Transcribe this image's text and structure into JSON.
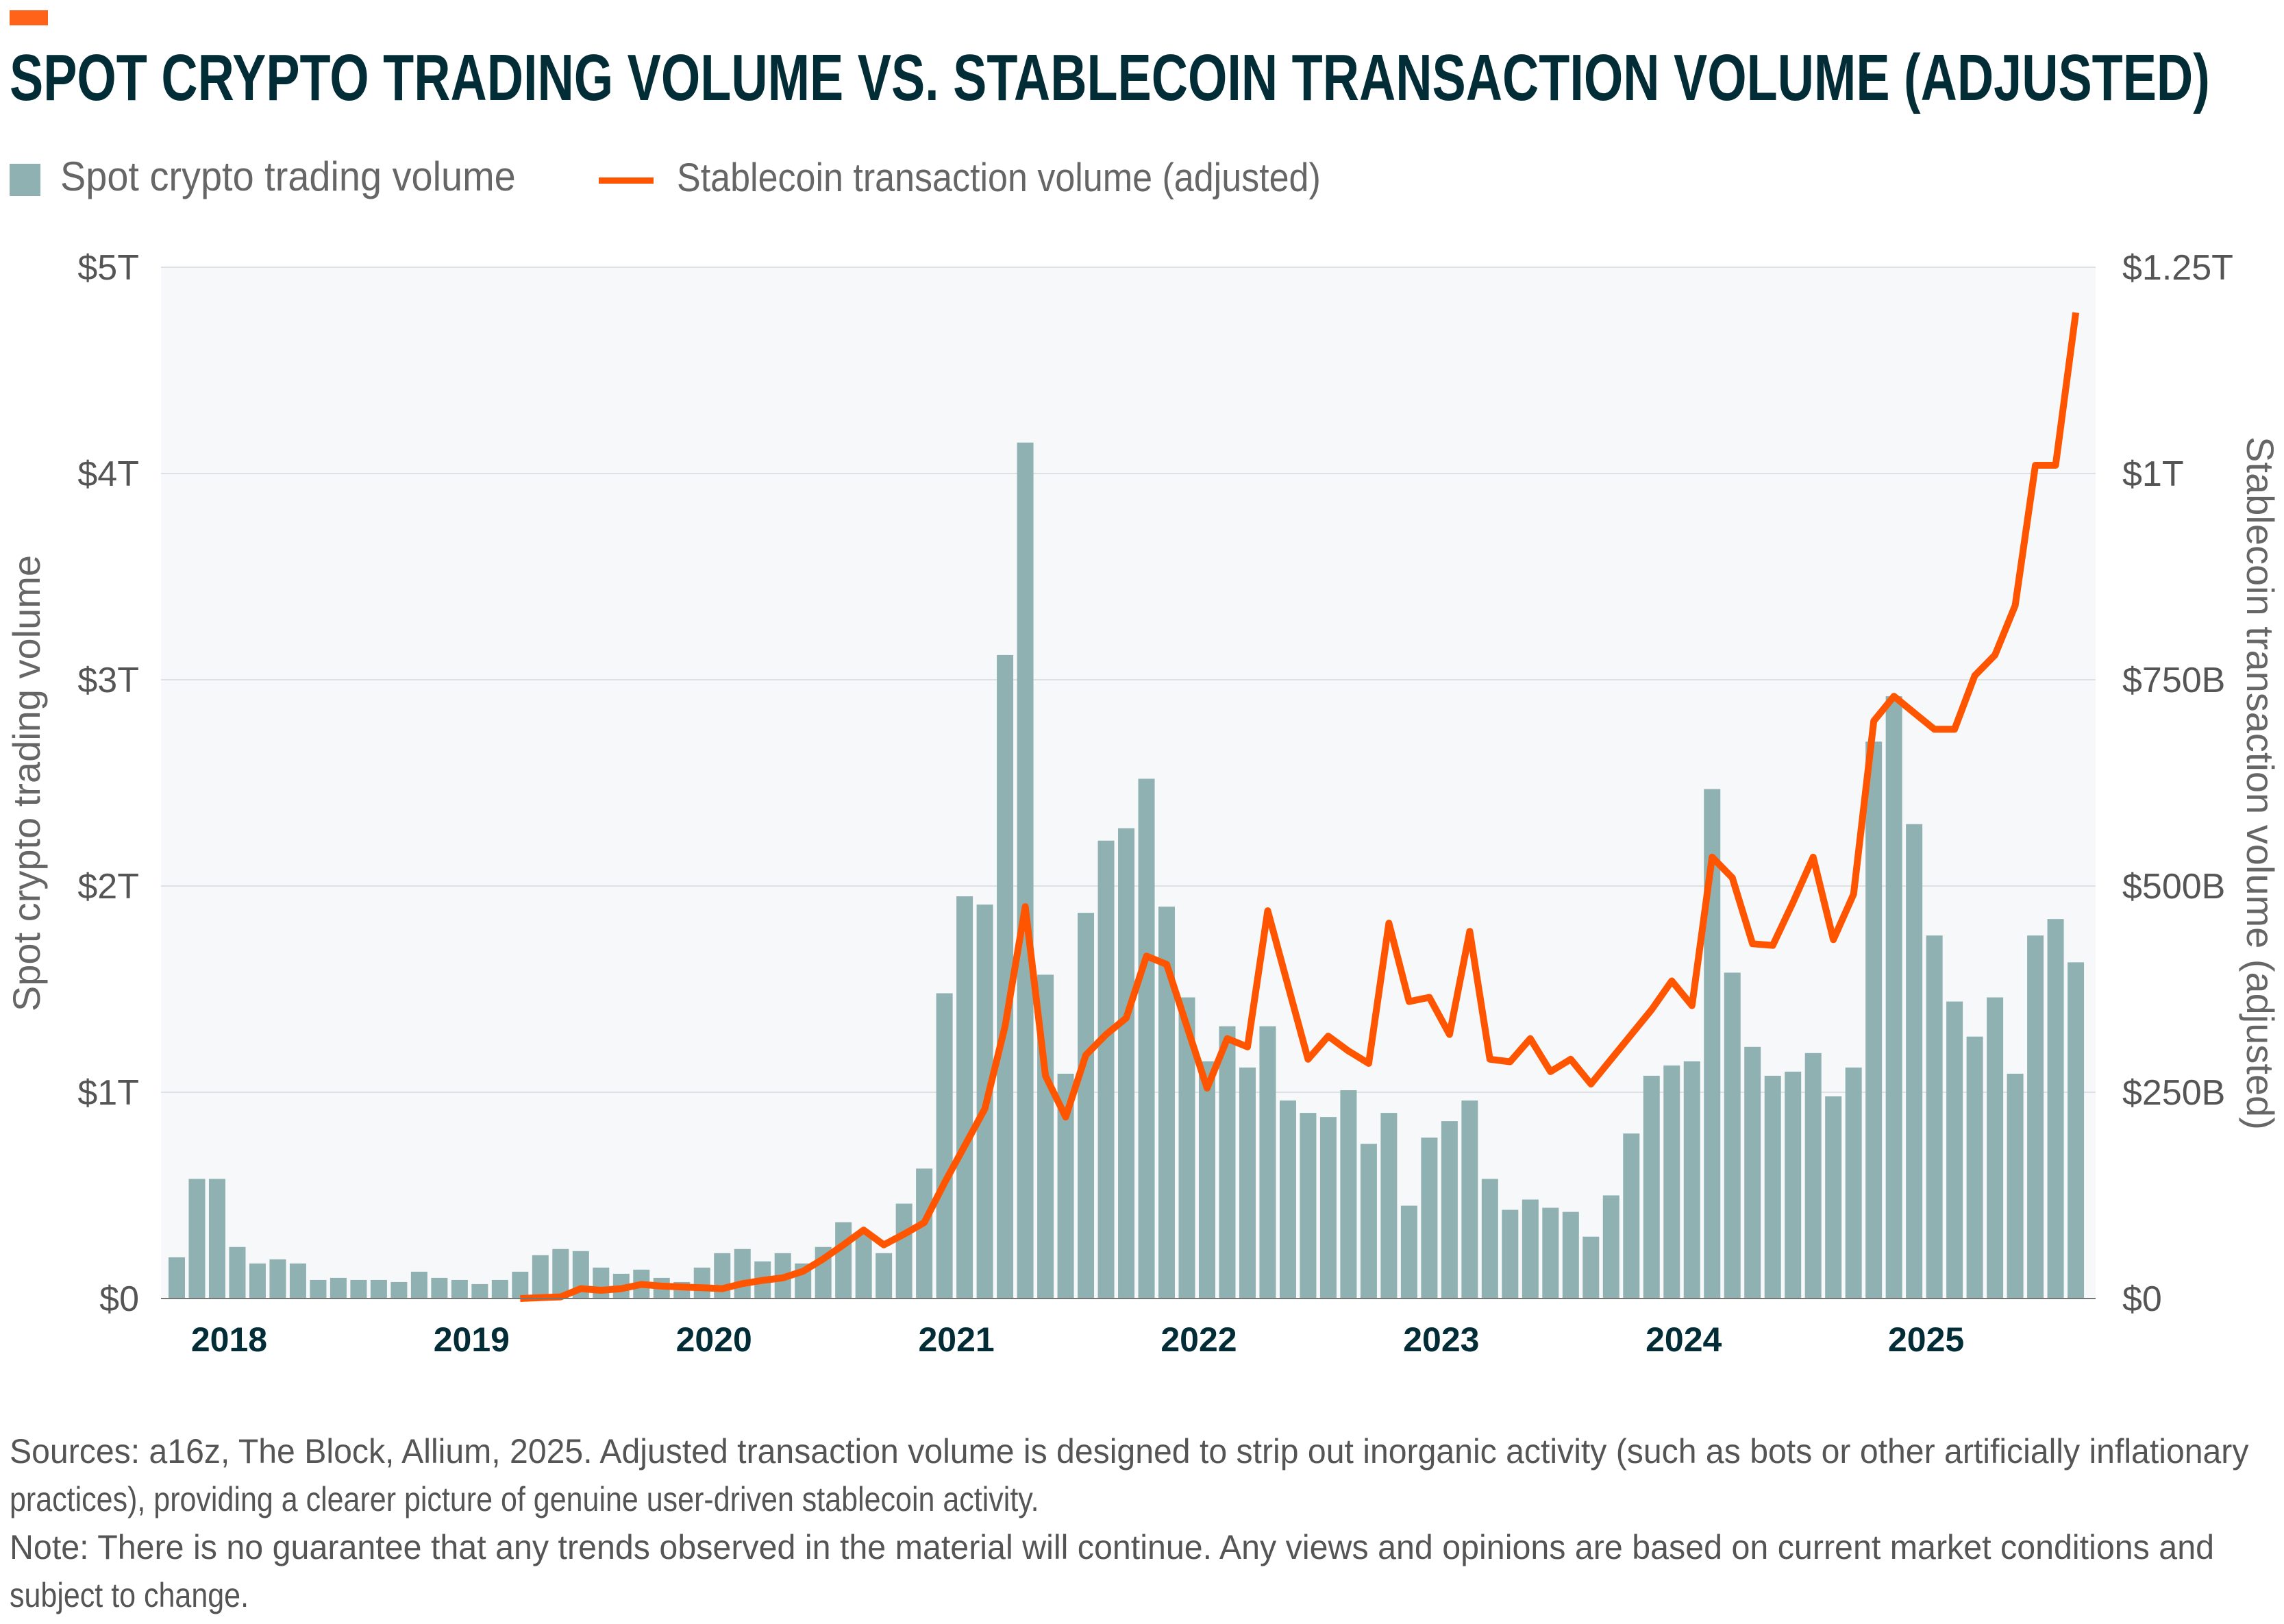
{
  "accent_color": "#ff6319",
  "title": "SPOT CRYPTO TRADING VOLUME VS. STABLECOIN TRANSACTION VOLUME (ADJUSTED)",
  "legend": {
    "spot": "Spot crypto trading volume",
    "stable": "Stablecoin transaction volume (adjusted)"
  },
  "footer": {
    "line1": "Sources: a16z, The Block, Allium, 2025. Adjusted transaction volume is designed to strip out inorganic activity (such as bots or other artificially inflationary",
    "line2": "practices), providing a clearer picture of genuine user-driven stablecoin activity.",
    "line3": "Note: There is no guarantee that any trends observed in the material will continue. Any views and opinions are based on current market conditions and",
    "line4": "subject to change."
  },
  "chart_data": {
    "type": "bar+line",
    "title": "SPOT CRYPTO TRADING VOLUME VS. STABLECOIN TRANSACTION VOLUME (ADJUSTED)",
    "ylabel_left": "Spot crypto trading volume",
    "ylabel_right": "Stablecoin transaction volume (adjusted)",
    "ylim_left": [
      0,
      5
    ],
    "ylim_right": [
      0,
      1250
    ],
    "left_unit": "trillions USD",
    "right_unit": "billions USD",
    "yticks_left": [
      "$0",
      "$1T",
      "$2T",
      "$3T",
      "$4T",
      "$5T"
    ],
    "yticks_right": [
      "$0",
      "$250B",
      "$500B",
      "$750B",
      "$1T",
      "$1.25T"
    ],
    "xticks": [
      "2018",
      "2019",
      "2020",
      "2021",
      "2022",
      "2023",
      "2024",
      "2025"
    ],
    "grid": true,
    "legend_position": "top-left",
    "colors": {
      "bars": "#8fb1b1",
      "line": "#ff5500",
      "plot_bg": "#f7f8fa"
    },
    "x": [
      "2017-10",
      "2017-11",
      "2017-12",
      "2018-01",
      "2018-02",
      "2018-03",
      "2018-04",
      "2018-05",
      "2018-06",
      "2018-07",
      "2018-08",
      "2018-09",
      "2018-10",
      "2018-11",
      "2018-12",
      "2019-01",
      "2019-02",
      "2019-03",
      "2019-04",
      "2019-05",
      "2019-06",
      "2019-07",
      "2019-08",
      "2019-09",
      "2019-10",
      "2019-11",
      "2019-12",
      "2020-01",
      "2020-02",
      "2020-03",
      "2020-04",
      "2020-05",
      "2020-06",
      "2020-07",
      "2020-08",
      "2020-09",
      "2020-10",
      "2020-11",
      "2020-12",
      "2021-01",
      "2021-02",
      "2021-03",
      "2021-04",
      "2021-05",
      "2021-06",
      "2021-07",
      "2021-08",
      "2021-09",
      "2021-10",
      "2021-11",
      "2021-12",
      "2022-01",
      "2022-02",
      "2022-03",
      "2022-04",
      "2022-05",
      "2022-06",
      "2022-07",
      "2022-08",
      "2022-09",
      "2022-10",
      "2022-11",
      "2022-12",
      "2023-01",
      "2023-02",
      "2023-03",
      "2023-04",
      "2023-05",
      "2023-06",
      "2023-07",
      "2023-08",
      "2023-09",
      "2023-10",
      "2023-11",
      "2023-12",
      "2024-01",
      "2024-02",
      "2024-03",
      "2024-04",
      "2024-05",
      "2024-06",
      "2024-07",
      "2024-08",
      "2024-09",
      "2024-10",
      "2024-11",
      "2024-12",
      "2025-01",
      "2025-02",
      "2025-03",
      "2025-04",
      "2025-05",
      "2025-06",
      "2025-07",
      "2025-08"
    ],
    "series": [
      {
        "name": "Spot crypto trading volume",
        "type": "bar",
        "axis": "left",
        "values": [
          0.2,
          0.58,
          0.58,
          0.25,
          0.17,
          0.19,
          0.17,
          0.09,
          0.1,
          0.09,
          0.09,
          0.08,
          0.13,
          0.1,
          0.09,
          0.07,
          0.09,
          0.13,
          0.21,
          0.24,
          0.23,
          0.15,
          0.12,
          0.14,
          0.1,
          0.08,
          0.15,
          0.22,
          0.24,
          0.18,
          0.22,
          0.17,
          0.25,
          0.37,
          0.32,
          0.22,
          0.46,
          0.63,
          1.48,
          1.95,
          1.91,
          3.12,
          4.15,
          1.57,
          1.09,
          1.87,
          2.22,
          2.28,
          2.52,
          1.9,
          1.46,
          1.15,
          1.32,
          1.12,
          1.32,
          0.96,
          0.9,
          0.88,
          1.01,
          0.75,
          0.9,
          0.45,
          0.78,
          0.86,
          0.96,
          0.58,
          0.43,
          0.48,
          0.44,
          0.42,
          0.3,
          0.5,
          0.8,
          1.08,
          1.13,
          1.15,
          2.47,
          1.58,
          1.22,
          1.08,
          1.1,
          1.19,
          0.98,
          1.12,
          2.7,
          2.92,
          2.3,
          1.76,
          1.44,
          1.27,
          1.46,
          1.09,
          1.76,
          1.84,
          1.63
        ]
      },
      {
        "name": "Stablecoin transaction volume (adjusted)",
        "type": "line",
        "axis": "right",
        "values": [
          null,
          null,
          null,
          null,
          null,
          null,
          null,
          null,
          null,
          null,
          null,
          null,
          null,
          null,
          null,
          null,
          null,
          0,
          1,
          2,
          12,
          10,
          12,
          17,
          15,
          14,
          13,
          12,
          18,
          22,
          25,
          33,
          48,
          65,
          83,
          65,
          78,
          92,
          140,
          185,
          230,
          330,
          475,
          270,
          220,
          295,
          320,
          340,
          415,
          405,
          330,
          255,
          315,
          305,
          470,
          380,
          290,
          318,
          300,
          285,
          455,
          360,
          365,
          320,
          445,
          290,
          287,
          315,
          275,
          290,
          260,
          290,
          320,
          350,
          385,
          355,
          535,
          510,
          430,
          428,
          480,
          535,
          435,
          490,
          700,
          730,
          710,
          690,
          690,
          755,
          780,
          840,
          1010,
          1010,
          1195
        ]
      }
    ]
  }
}
